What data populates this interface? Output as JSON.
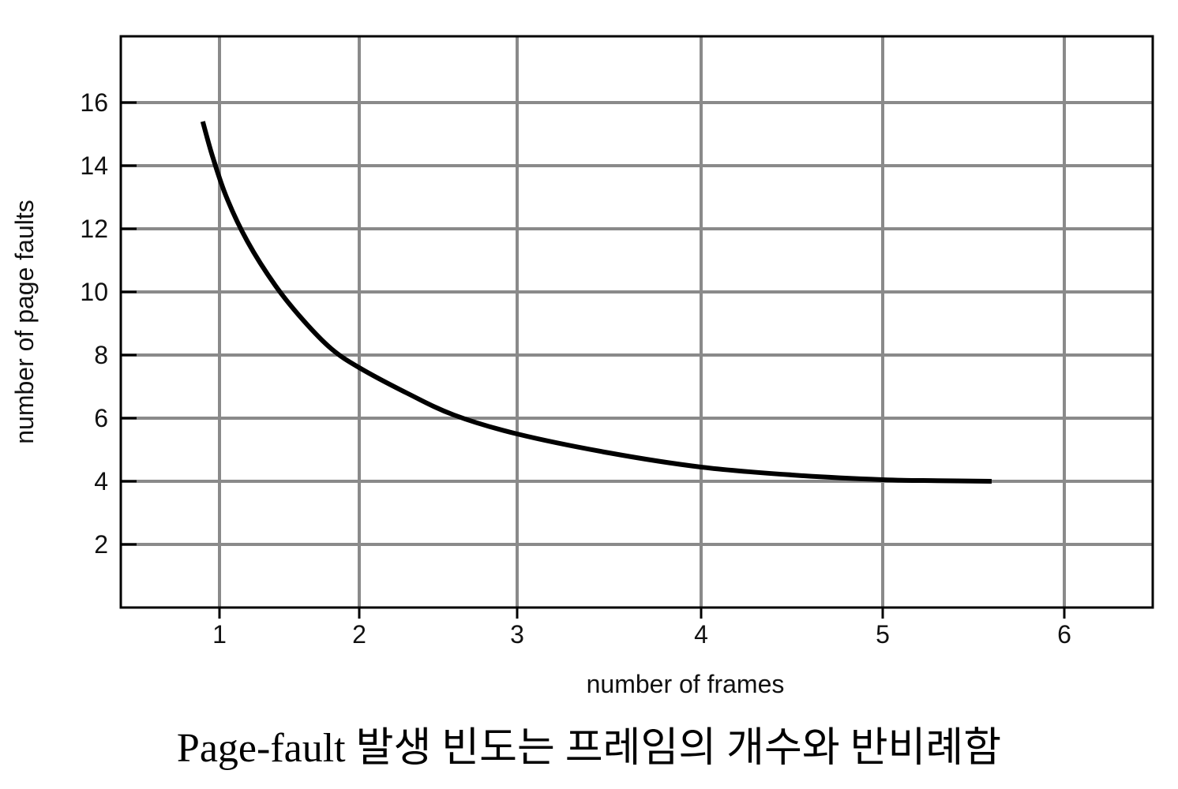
{
  "chart_data": {
    "type": "line",
    "title": "",
    "xlabel": "number of frames",
    "ylabel": "number of page faults",
    "xlim": [
      0.45,
      6.5
    ],
    "ylim": [
      0,
      18
    ],
    "x_ticks": [
      1,
      2,
      3,
      4,
      5,
      6
    ],
    "y_ticks": [
      2,
      4,
      6,
      8,
      10,
      12,
      14,
      16
    ],
    "x_tick_labels": [
      "1",
      "2",
      "3",
      "4",
      "5",
      "6"
    ],
    "y_tick_labels": [
      "2",
      "4",
      "6",
      "8",
      "10",
      "12",
      "14",
      "16"
    ],
    "grid": true,
    "legend": "none",
    "series": [
      {
        "x": [
          0.88,
          0.95,
          1.05,
          1.2,
          1.4,
          1.6,
          1.8,
          2.0,
          2.3,
          2.6,
          3.0,
          3.5,
          4.0,
          4.5,
          5.0,
          5.3,
          5.6
        ],
        "y": [
          15.4,
          14.3,
          13.0,
          11.6,
          10.2,
          9.1,
          8.2,
          7.6,
          6.8,
          6.1,
          5.5,
          4.9,
          4.45,
          4.2,
          4.05,
          4.02,
          4.0
        ]
      }
    ],
    "line_color": "#000000",
    "grid_color": "#8a8a8a"
  },
  "caption": "Page-fault 발생 빈도는 프레임의 개수와 반비례함"
}
